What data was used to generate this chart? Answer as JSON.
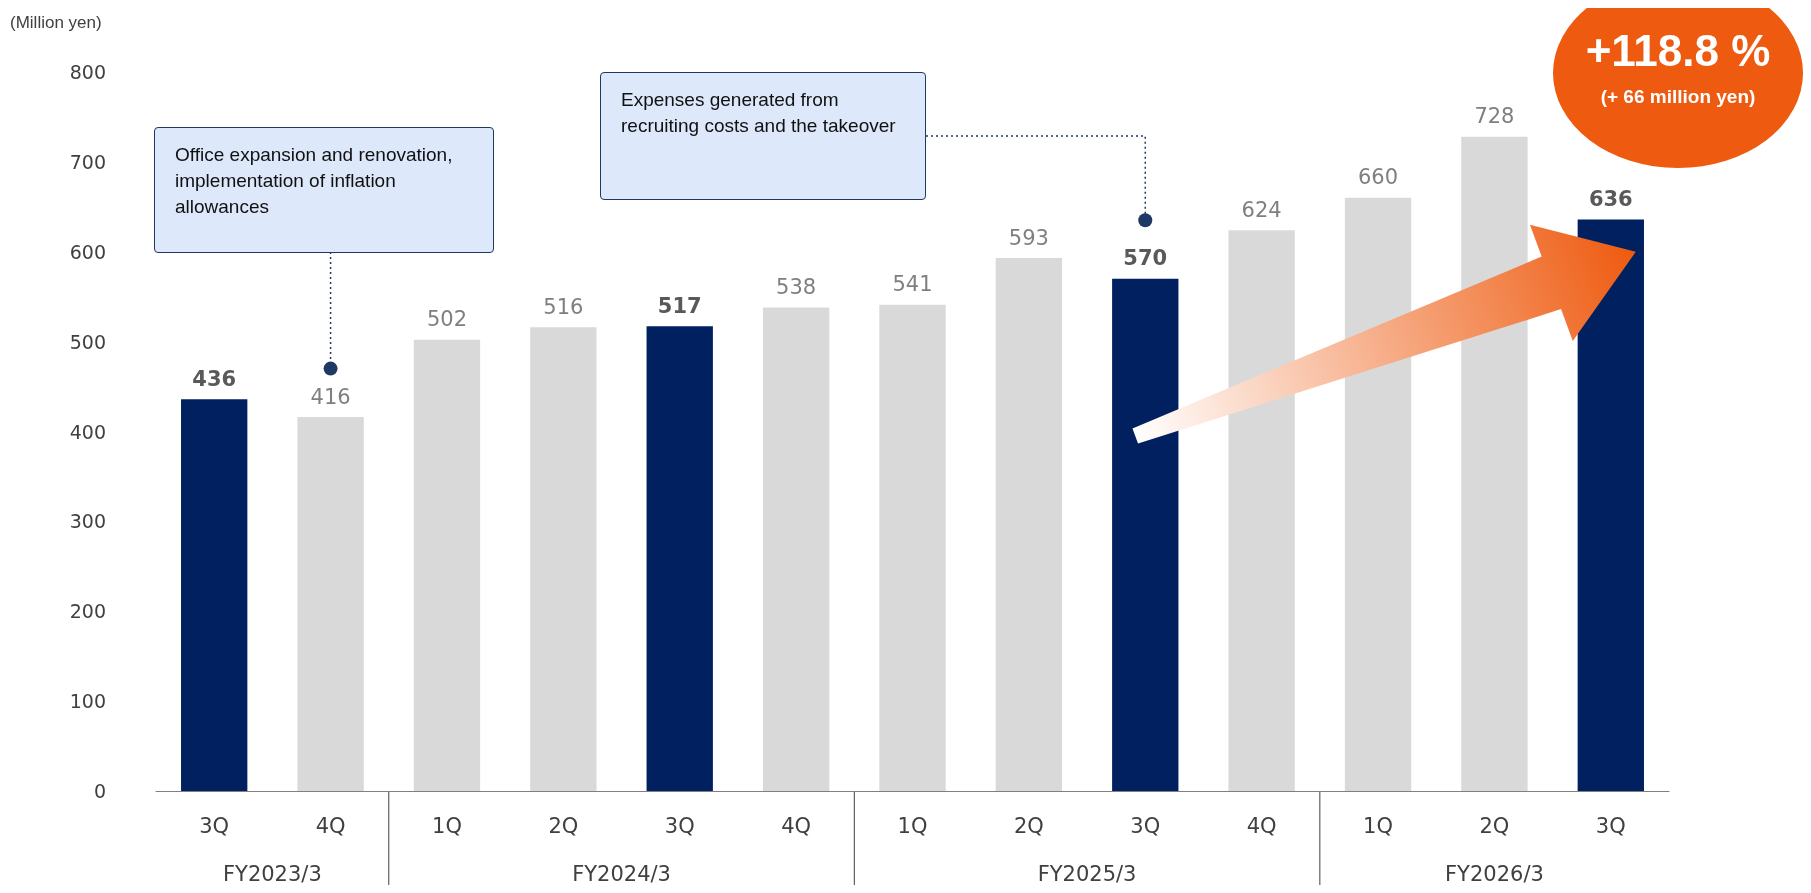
{
  "chart_data": {
    "type": "bar",
    "ylabel": "(Million yen)",
    "categories": [
      "3Q",
      "4Q",
      "1Q",
      "2Q",
      "3Q",
      "4Q",
      "1Q",
      "2Q",
      "3Q",
      "4Q",
      "1Q",
      "2Q",
      "3Q"
    ],
    "values": [
      436,
      416,
      502,
      516,
      517,
      538,
      541,
      593,
      570,
      624,
      660,
      728,
      636
    ],
    "colors": [
      "#002060",
      "#d9d9d9",
      "#d9d9d9",
      "#d9d9d9",
      "#002060",
      "#d9d9d9",
      "#d9d9d9",
      "#d9d9d9",
      "#002060",
      "#d9d9d9",
      "#d9d9d9",
      "#d9d9d9",
      "#002060"
    ],
    "ylim": [
      0,
      800
    ],
    "yticks": [
      0,
      100,
      200,
      300,
      400,
      500,
      600,
      700,
      800
    ],
    "grid": false,
    "data_labels": true,
    "annotations": [
      "Office expansion and renovation, implementation of inflation allowances",
      "Expenses generated from recruiting costs and the takeover",
      "+118.8 %",
      "(+ 66 million yen)",
      "FY2023/3",
      "FY2024/3",
      "FY2025/3",
      "FY2026/3"
    ]
  }
}
